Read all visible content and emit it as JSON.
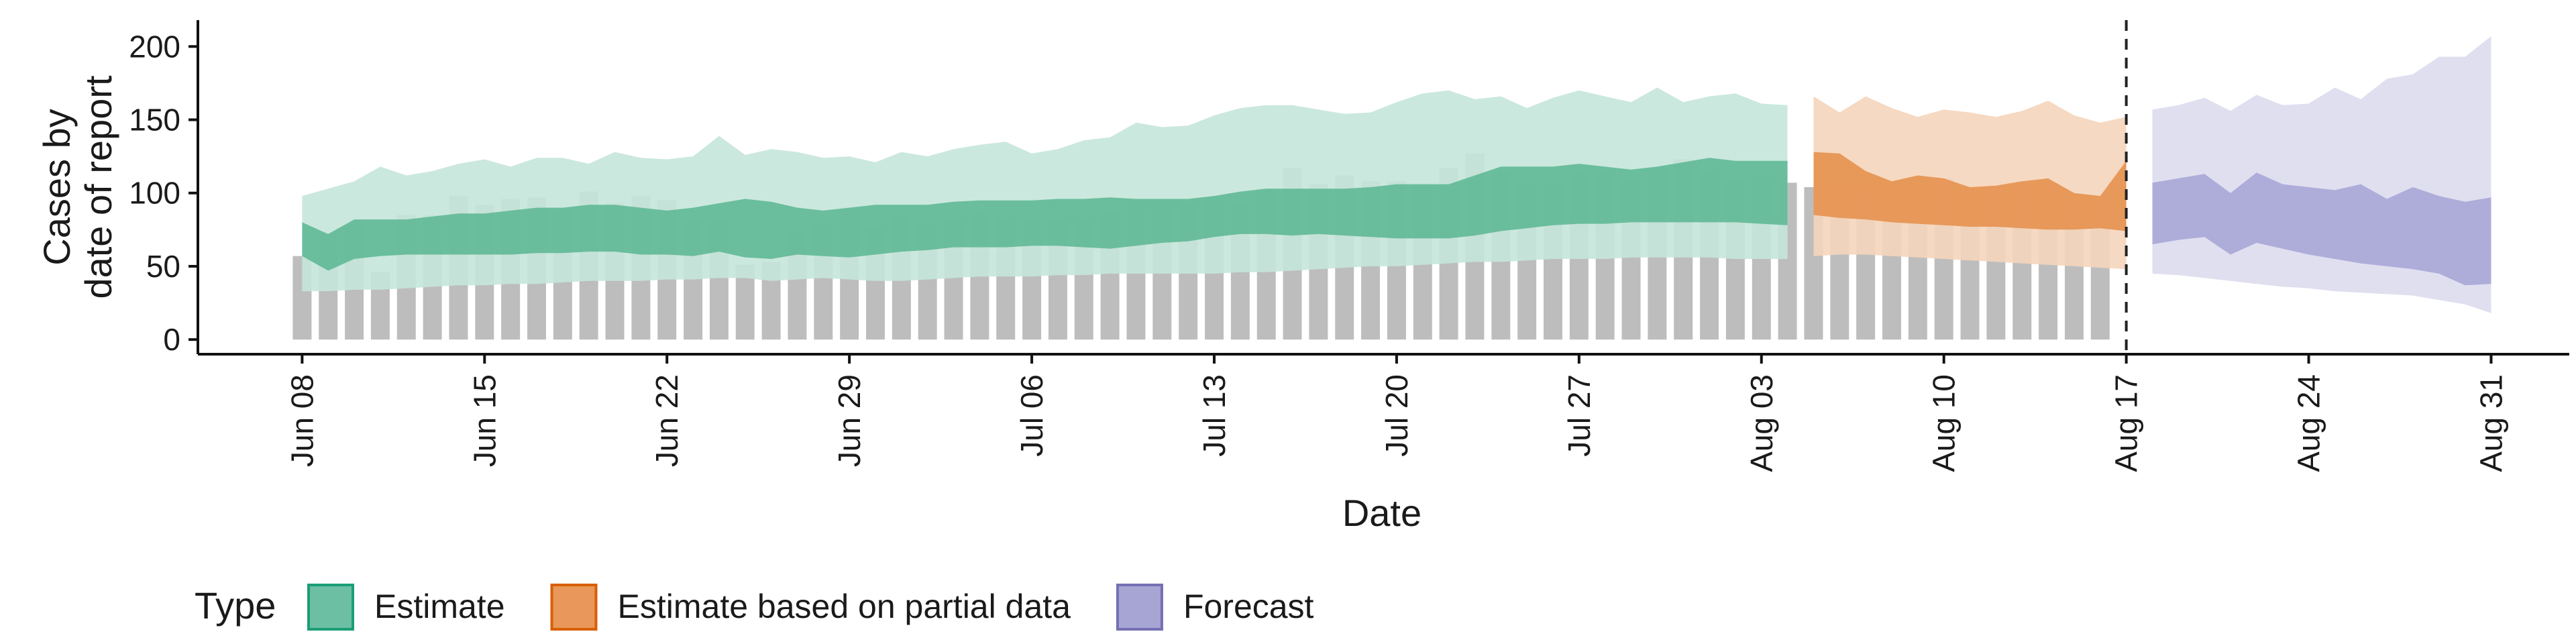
{
  "chart_data": {
    "type": "area",
    "title": "",
    "xlabel": "Date",
    "ylabel": [
      "Cases by",
      "date of report"
    ],
    "x_start": "2020-06-08",
    "xlim": [
      "2020-06-04",
      "2020-09-03"
    ],
    "ylim": [
      -10,
      218
    ],
    "y_ticks": [
      0,
      50,
      100,
      150,
      200
    ],
    "x_ticks": [
      {
        "date": "2020-06-08",
        "label": "Jun 08"
      },
      {
        "date": "2020-06-15",
        "label": "Jun 15"
      },
      {
        "date": "2020-06-22",
        "label": "Jun 22"
      },
      {
        "date": "2020-06-29",
        "label": "Jun 29"
      },
      {
        "date": "2020-07-06",
        "label": "Jul 06"
      },
      {
        "date": "2020-07-13",
        "label": "Jul 13"
      },
      {
        "date": "2020-07-20",
        "label": "Jul 20"
      },
      {
        "date": "2020-07-27",
        "label": "Jul 27"
      },
      {
        "date": "2020-08-03",
        "label": "Aug 03"
      },
      {
        "date": "2020-08-10",
        "label": "Aug 10"
      },
      {
        "date": "2020-08-17",
        "label": "Aug 17"
      },
      {
        "date": "2020-08-24",
        "label": "Aug 24"
      },
      {
        "date": "2020-08-31",
        "label": "Aug 31"
      }
    ],
    "vline": {
      "date": "2020-08-17",
      "style": "dashed"
    },
    "grid": false,
    "legend_position": "bottom-left",
    "legend": {
      "title": "Type",
      "items": [
        {
          "label": "Estimate",
          "fill": "#6cbfa3",
          "stroke": "#1b9e77"
        },
        {
          "label": "Estimate based on partial data",
          "fill": "#e9975a",
          "stroke": "#d95f02"
        },
        {
          "label": "Forecast",
          "fill": "#a7a5d3",
          "stroke": "#7570b3"
        }
      ]
    },
    "reported_cases": {
      "name": "Reported cases",
      "color": "#bdbdbd",
      "values": [
        57,
        73,
        78,
        46,
        85,
        85,
        98,
        92,
        96,
        97,
        88,
        101,
        93,
        98,
        95,
        81,
        83,
        51,
        53,
        74,
        80,
        90,
        77,
        85,
        80,
        82,
        86,
        83,
        83,
        82,
        82,
        87,
        95,
        93,
        92,
        95,
        93,
        103,
        117,
        106,
        112,
        108,
        108,
        106,
        117,
        127,
        114,
        107,
        107,
        113,
        114,
        110,
        117,
        123,
        113,
        108,
        111,
        107,
        104,
        107,
        103,
        103,
        104,
        110,
        103,
        105,
        106,
        107,
        96,
        98
      ]
    },
    "series": [
      {
        "name": "Estimate",
        "start": "2020-06-08",
        "inner_color": "#5fb996",
        "outer_color": "#c5e6da",
        "lower90": [
          33,
          33,
          34,
          34,
          35,
          36,
          37,
          37,
          38,
          38,
          39,
          40,
          40,
          40,
          41,
          41,
          42,
          42,
          40,
          41,
          42,
          41,
          40,
          40,
          41,
          42,
          43,
          43,
          43,
          44,
          44,
          45,
          45,
          45,
          45,
          45,
          46,
          46,
          47,
          48,
          49,
          50,
          50,
          51,
          52,
          53,
          53,
          54,
          55,
          55,
          55,
          56,
          56,
          56,
          56,
          55,
          55,
          55
        ],
        "lower50": [
          57,
          47,
          55,
          57,
          58,
          58,
          58,
          58,
          58,
          59,
          59,
          60,
          60,
          58,
          58,
          57,
          60,
          56,
          55,
          58,
          57,
          56,
          58,
          60,
          61,
          63,
          63,
          63,
          64,
          64,
          63,
          62,
          64,
          66,
          67,
          70,
          72,
          72,
          71,
          72,
          71,
          70,
          69,
          69,
          69,
          71,
          74,
          76,
          78,
          79,
          79,
          80,
          80,
          80,
          80,
          80,
          79,
          78
        ],
        "upper50": [
          80,
          72,
          82,
          82,
          82,
          84,
          86,
          86,
          88,
          90,
          90,
          92,
          92,
          90,
          88,
          90,
          93,
          96,
          94,
          90,
          88,
          90,
          92,
          92,
          92,
          94,
          95,
          95,
          95,
          96,
          96,
          97,
          96,
          96,
          96,
          98,
          101,
          103,
          103,
          103,
          103,
          104,
          106,
          106,
          106,
          112,
          118,
          118,
          118,
          120,
          118,
          116,
          118,
          121,
          124,
          122,
          122,
          122
        ],
        "upper90": [
          98,
          103,
          108,
          118,
          112,
          115,
          120,
          123,
          118,
          124,
          124,
          120,
          128,
          124,
          123,
          125,
          139,
          126,
          130,
          128,
          124,
          125,
          121,
          128,
          125,
          130,
          133,
          135,
          127,
          130,
          136,
          138,
          148,
          145,
          146,
          153,
          158,
          160,
          160,
          157,
          154,
          155,
          162,
          168,
          170,
          164,
          166,
          158,
          165,
          170,
          166,
          162,
          172,
          162,
          166,
          168,
          161,
          160
        ]
      },
      {
        "name": "Estimate based on partial data",
        "start": "2020-08-05",
        "inner_color": "#e6914f",
        "outer_color": "#f5d5bb",
        "lower90": [
          57,
          58,
          58,
          57,
          56,
          55,
          54,
          53,
          52,
          51,
          50,
          49,
          48
        ],
        "lower50": [
          85,
          83,
          82,
          80,
          79,
          78,
          77,
          77,
          76,
          75,
          75,
          76,
          74
        ],
        "upper50": [
          128,
          127,
          115,
          108,
          112,
          110,
          104,
          105,
          108,
          110,
          100,
          98,
          122
        ],
        "upper90": [
          166,
          155,
          166,
          158,
          152,
          157,
          155,
          152,
          156,
          163,
          153,
          148,
          152
        ]
      },
      {
        "name": "Forecast",
        "start": "2020-08-18",
        "inner_color": "#a8a6d6",
        "outer_color": "#dcdcee",
        "lower90": [
          45,
          44,
          42,
          40,
          38,
          36,
          35,
          33,
          32,
          31,
          30,
          27,
          24,
          18
        ],
        "lower50": [
          65,
          68,
          70,
          58,
          66,
          62,
          58,
          55,
          52,
          50,
          48,
          45,
          37,
          38
        ],
        "upper50": [
          107,
          110,
          113,
          100,
          114,
          106,
          104,
          102,
          106,
          96,
          104,
          98,
          94,
          97
        ],
        "upper90": [
          157,
          160,
          165,
          156,
          167,
          160,
          161,
          172,
          164,
          178,
          181,
          193,
          193,
          207
        ]
      }
    ]
  }
}
